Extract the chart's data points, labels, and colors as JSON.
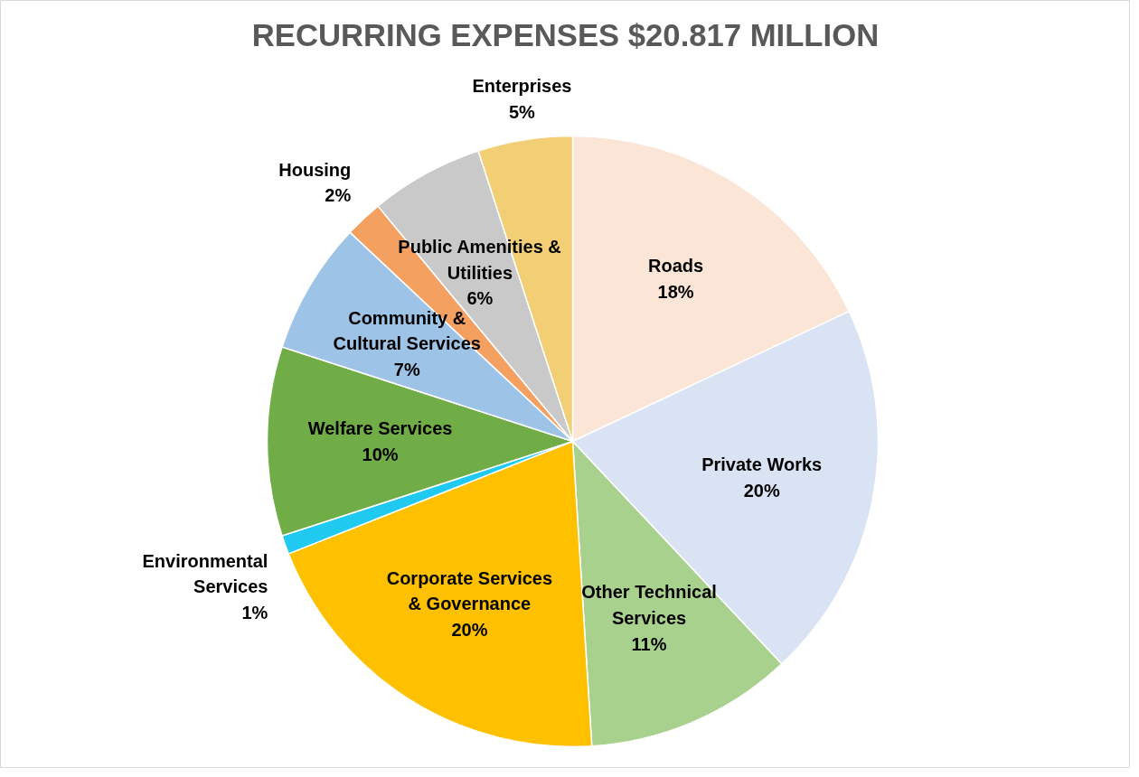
{
  "chart_data": {
    "type": "pie",
    "title": "RECURRING EXPENSES $20.817 MILLION",
    "categories": [
      "Roads",
      "Private Works",
      "Other Technical Services",
      "Corporate Services & Governance",
      "Environmental Services",
      "Welfare Services",
      "Community & Cultural Services",
      "Housing",
      "Public Amenities & Utilities",
      "Enterprises"
    ],
    "values": [
      18,
      20,
      11,
      20,
      1,
      10,
      7,
      2,
      6,
      5
    ],
    "colors": [
      "#fbe5d6",
      "#dae3f3",
      "#a9d18e",
      "#ffc000",
      "#1fc9f0",
      "#70ad47",
      "#9dc3e6",
      "#f4a060",
      "#c9c9c9",
      "#f2cf75"
    ],
    "value_labels": [
      "18%",
      "20%",
      "11%",
      "20%",
      "1%",
      "10%",
      "7%",
      "2%",
      "6%",
      "5%"
    ]
  }
}
